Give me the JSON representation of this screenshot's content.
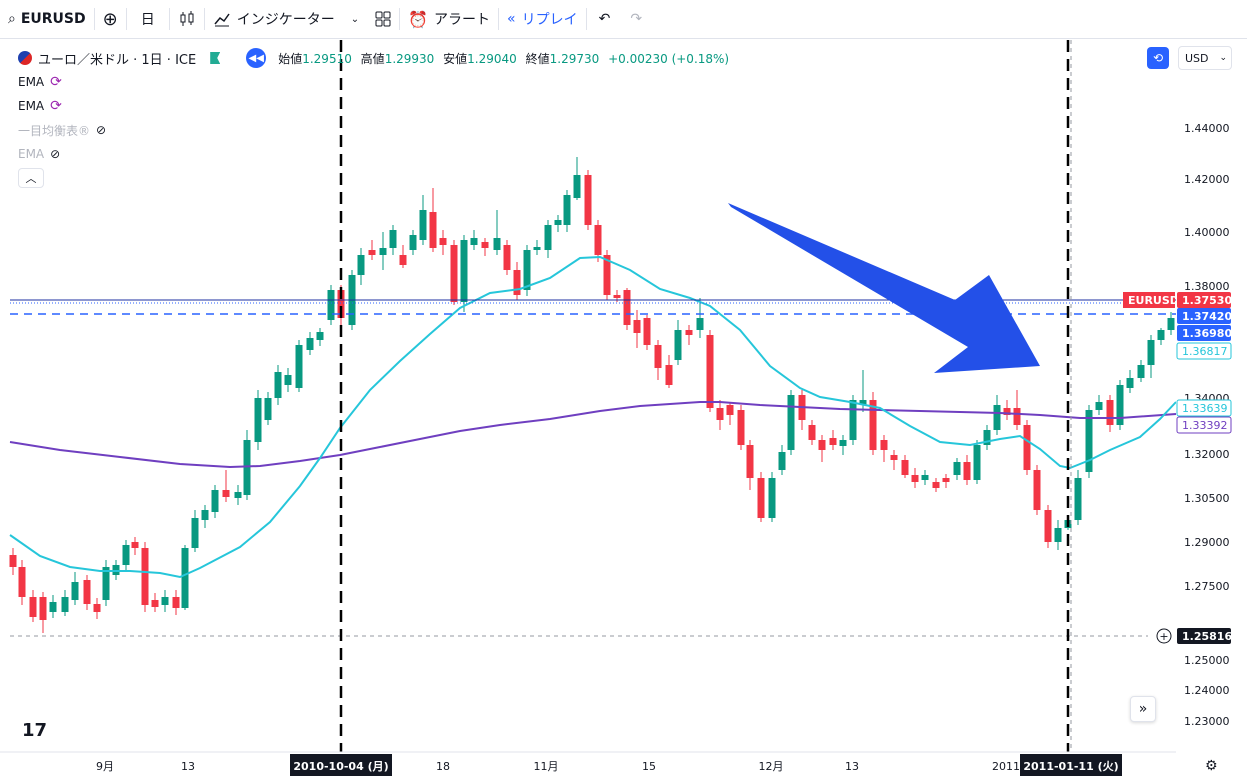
{
  "toolbar": {
    "symbol": "EURUSD",
    "interval": "日",
    "indicators_label": "インジケーター",
    "alert_label": "アラート",
    "replay_label": "リプレイ"
  },
  "legend": {
    "title": "ユーロ／米ドル · 1日 · ICE",
    "open_label": "始値",
    "open": "1.29510",
    "high_label": "高値",
    "high": "1.29930",
    "low_label": "安値",
    "low": "1.29040",
    "close_label": "終値",
    "close": "1.29730",
    "change": "+0.00230 (+0.18%)",
    "indicators": [
      {
        "name": "EMA",
        "state": "loading"
      },
      {
        "name": "EMA",
        "state": "loading"
      },
      {
        "name": "一目均衡表®",
        "state": "hidden"
      },
      {
        "name": "EMA",
        "state": "hidden"
      }
    ]
  },
  "currency": "USD",
  "colors": {
    "up": "#089981",
    "down": "#f23645",
    "ema_fast": "#26c6da",
    "ema_slow": "#6f3fc0",
    "arrow": "#2350e8",
    "line_blue": "#2962ff"
  },
  "chart_data": {
    "type": "candlestick",
    "symbol": "EURUSD",
    "y_ticks": [
      "1.44000",
      "1.42000",
      "1.40000",
      "1.38000",
      "1.34000",
      "1.32000",
      "1.30500",
      "1.29000",
      "1.27500",
      "1.25000",
      "1.24000",
      "1.23000"
    ],
    "x_ticks": [
      "9月",
      "13",
      "18",
      "11月",
      "15",
      "12月",
      "13",
      "2011"
    ],
    "price_labels": [
      {
        "label": "EURUSD",
        "value": "1.37530",
        "color": "#f23645"
      },
      {
        "value": "1.37420",
        "color": "#2962ff"
      },
      {
        "value": "1.36980",
        "color": "#2962ff"
      },
      {
        "value": "1.36817",
        "color": "#26c6da",
        "outline": true
      },
      {
        "value": "1.33639",
        "color": "#26c6da",
        "outline": true
      },
      {
        "value": "1.33392",
        "color": "#6f3fc0",
        "outline": true
      },
      {
        "value": "1.25816",
        "color": "#131722"
      }
    ],
    "crosshair_dates": [
      "2010-10-04 (月)",
      "2011-01-11 (火)"
    ]
  }
}
